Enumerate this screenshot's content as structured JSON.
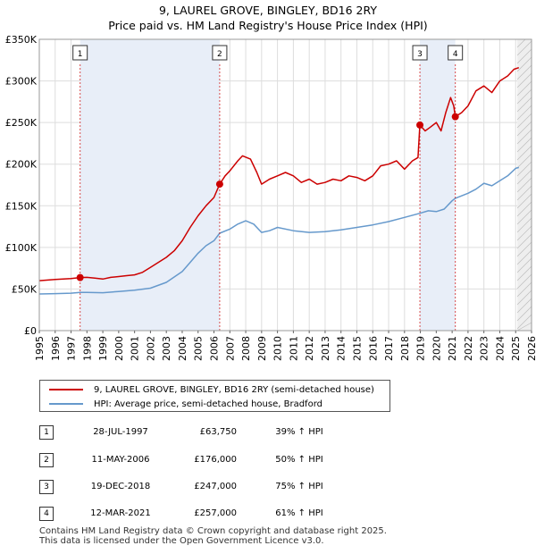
{
  "chart_data": {
    "type": "line",
    "title": "9, LAUREL GROVE, BINGLEY, BD16 2RY",
    "subtitle": "Price paid vs. HM Land Registry's House Price Index (HPI)",
    "xlabel": "",
    "ylabel": "",
    "xlim": [
      1995,
      2026
    ],
    "ylim": [
      0,
      350000
    ],
    "grid": true,
    "y_ticks": [
      {
        "value": 0,
        "label": "£0"
      },
      {
        "value": 50000,
        "label": "£50K"
      },
      {
        "value": 100000,
        "label": "£100K"
      },
      {
        "value": 150000,
        "label": "£150K"
      },
      {
        "value": 200000,
        "label": "£200K"
      },
      {
        "value": 250000,
        "label": "£250K"
      },
      {
        "value": 300000,
        "label": "£300K"
      },
      {
        "value": 350000,
        "label": "£350K"
      }
    ],
    "x_ticks": [
      "1995",
      "1996",
      "1997",
      "1998",
      "1999",
      "2000",
      "2001",
      "2002",
      "2003",
      "2004",
      "2005",
      "2006",
      "2007",
      "2008",
      "2009",
      "2010",
      "2011",
      "2012",
      "2013",
      "2014",
      "2015",
      "2016",
      "2017",
      "2018",
      "2019",
      "2020",
      "2021",
      "2022",
      "2023",
      "2024",
      "2025",
      "2026"
    ],
    "series": [
      {
        "name": "9, LAUREL GROVE, BINGLEY, BD16 2RY (semi-detached house)",
        "color": "#cc0000",
        "points": [
          [
            1995.0,
            60000
          ],
          [
            1996.0,
            61500
          ],
          [
            1996.5,
            62000
          ],
          [
            1997.0,
            62500
          ],
          [
            1997.57,
            63750
          ],
          [
            1998.0,
            64000
          ],
          [
            1998.5,
            63000
          ],
          [
            1999.0,
            62000
          ],
          [
            1999.5,
            64000
          ],
          [
            2000.0,
            65000
          ],
          [
            2000.5,
            66000
          ],
          [
            2001.0,
            67000
          ],
          [
            2001.5,
            70000
          ],
          [
            2002.0,
            76000
          ],
          [
            2002.5,
            82000
          ],
          [
            2003.0,
            88000
          ],
          [
            2003.5,
            96000
          ],
          [
            2004.0,
            108000
          ],
          [
            2004.5,
            124000
          ],
          [
            2005.0,
            138000
          ],
          [
            2005.5,
            150000
          ],
          [
            2006.0,
            160000
          ],
          [
            2006.36,
            176000
          ],
          [
            2006.7,
            186000
          ],
          [
            2007.0,
            192000
          ],
          [
            2007.5,
            204000
          ],
          [
            2007.8,
            210000
          ],
          [
            2008.3,
            206000
          ],
          [
            2008.7,
            190000
          ],
          [
            2009.0,
            176000
          ],
          [
            2009.5,
            182000
          ],
          [
            2010.0,
            186000
          ],
          [
            2010.5,
            190000
          ],
          [
            2011.0,
            186000
          ],
          [
            2011.5,
            178000
          ],
          [
            2012.0,
            182000
          ],
          [
            2012.5,
            176000
          ],
          [
            2013.0,
            178000
          ],
          [
            2013.5,
            182000
          ],
          [
            2014.0,
            180000
          ],
          [
            2014.5,
            186000
          ],
          [
            2015.0,
            184000
          ],
          [
            2015.5,
            180000
          ],
          [
            2016.0,
            186000
          ],
          [
            2016.5,
            198000
          ],
          [
            2017.0,
            200000
          ],
          [
            2017.5,
            204000
          ],
          [
            2018.0,
            194000
          ],
          [
            2018.5,
            204000
          ],
          [
            2018.85,
            208000
          ],
          [
            2018.97,
            247000
          ],
          [
            2019.3,
            240000
          ],
          [
            2019.6,
            244000
          ],
          [
            2020.0,
            250000
          ],
          [
            2020.3,
            240000
          ],
          [
            2020.6,
            262000
          ],
          [
            2020.9,
            280000
          ],
          [
            2021.1,
            270000
          ],
          [
            2021.2,
            257000
          ],
          [
            2021.6,
            262000
          ],
          [
            2022.0,
            270000
          ],
          [
            2022.5,
            288000
          ],
          [
            2023.0,
            294000
          ],
          [
            2023.5,
            286000
          ],
          [
            2024.0,
            300000
          ],
          [
            2024.5,
            306000
          ],
          [
            2024.9,
            314000
          ],
          [
            2025.2,
            316000
          ]
        ]
      },
      {
        "name": "HPI: Average price, semi-detached house, Bradford",
        "color": "#6699cc",
        "points": [
          [
            1995.0,
            44000
          ],
          [
            1996.0,
            44500
          ],
          [
            1997.0,
            45000
          ],
          [
            1997.57,
            45800
          ],
          [
            1998.0,
            46000
          ],
          [
            1999.0,
            45500
          ],
          [
            2000.0,
            47000
          ],
          [
            2001.0,
            48500
          ],
          [
            2002.0,
            51000
          ],
          [
            2003.0,
            58000
          ],
          [
            2004.0,
            71000
          ],
          [
            2004.5,
            82000
          ],
          [
            2005.0,
            93000
          ],
          [
            2005.5,
            102000
          ],
          [
            2006.0,
            108000
          ],
          [
            2006.36,
            117000
          ],
          [
            2007.0,
            122000
          ],
          [
            2007.5,
            128000
          ],
          [
            2008.0,
            132000
          ],
          [
            2008.5,
            128000
          ],
          [
            2009.0,
            118000
          ],
          [
            2009.5,
            120000
          ],
          [
            2010.0,
            124000
          ],
          [
            2011.0,
            120000
          ],
          [
            2012.0,
            118000
          ],
          [
            2013.0,
            119000
          ],
          [
            2014.0,
            121000
          ],
          [
            2015.0,
            124000
          ],
          [
            2016.0,
            127000
          ],
          [
            2017.0,
            131000
          ],
          [
            2018.0,
            136000
          ],
          [
            2018.97,
            141000
          ],
          [
            2019.5,
            144000
          ],
          [
            2020.0,
            143000
          ],
          [
            2020.5,
            146000
          ],
          [
            2021.0,
            156000
          ],
          [
            2021.2,
            159000
          ],
          [
            2022.0,
            165000
          ],
          [
            2022.5,
            170000
          ],
          [
            2023.0,
            177000
          ],
          [
            2023.5,
            174000
          ],
          [
            2024.0,
            180000
          ],
          [
            2024.5,
            186000
          ],
          [
            2025.0,
            195000
          ],
          [
            2025.2,
            196000
          ]
        ]
      }
    ],
    "sales": [
      {
        "num": "1",
        "x": 1997.57,
        "value": 63750
      },
      {
        "num": "2",
        "x": 2006.36,
        "value": 176000
      },
      {
        "num": "3",
        "x": 2018.97,
        "value": 247000
      },
      {
        "num": "4",
        "x": 2021.2,
        "value": 257000
      }
    ],
    "shaded_periods": [
      [
        1997.57,
        2006.36
      ],
      [
        2018.97,
        2021.2
      ]
    ],
    "forecast_from": 2025.1
  },
  "legend": {
    "property": "9, LAUREL GROVE, BINGLEY, BD16 2RY (semi-detached house)",
    "hpi": "HPI: Average price, semi-detached house, Bradford"
  },
  "table": [
    {
      "num": "1",
      "date": "28-JUL-1997",
      "price": "£63,750",
      "hpi": "39% ↑ HPI"
    },
    {
      "num": "2",
      "date": "11-MAY-2006",
      "price": "£176,000",
      "hpi": "50% ↑ HPI"
    },
    {
      "num": "3",
      "date": "19-DEC-2018",
      "price": "£247,000",
      "hpi": "75% ↑ HPI"
    },
    {
      "num": "4",
      "date": "12-MAR-2021",
      "price": "£257,000",
      "hpi": "61% ↑ HPI"
    }
  ],
  "footer": {
    "line1": "Contains HM Land Registry data © Crown copyright and database right 2025.",
    "line2": "This data is licensed under the Open Government Licence v3.0."
  },
  "colors": {
    "property": "#cc0000",
    "hpi": "#6699cc",
    "shade": "#e8eef8"
  }
}
